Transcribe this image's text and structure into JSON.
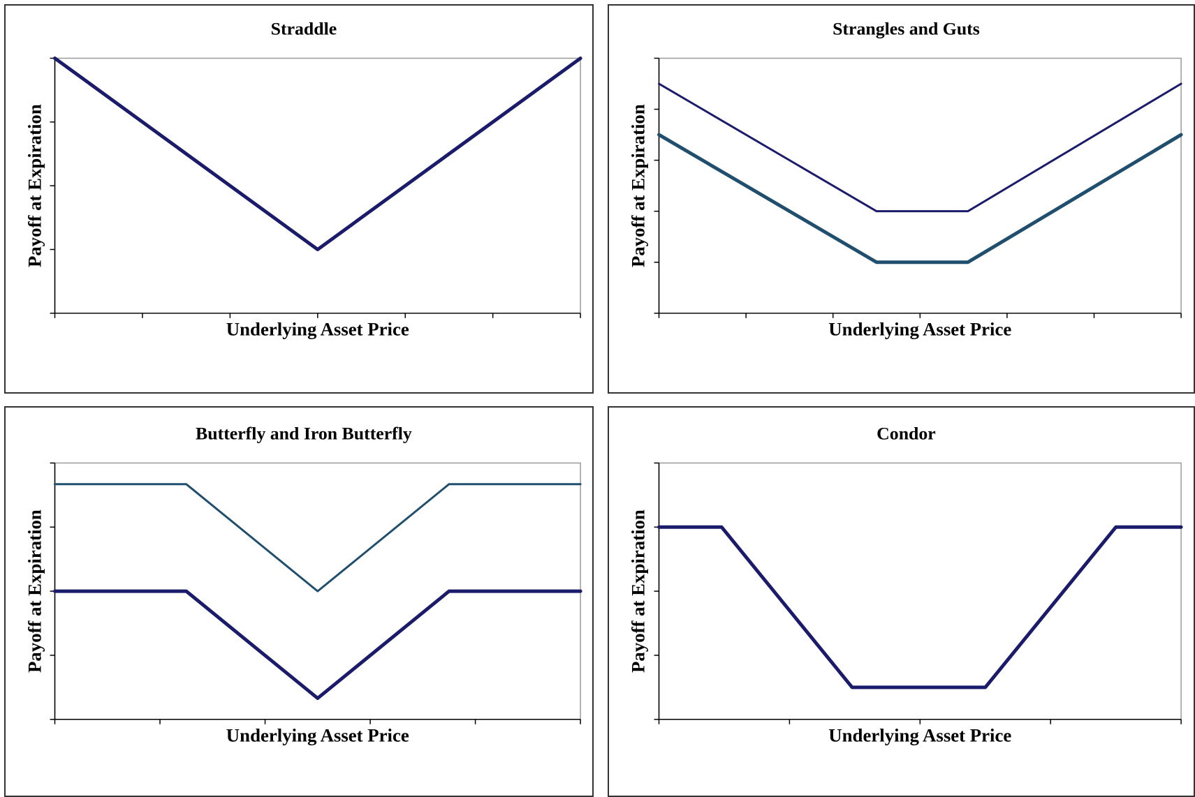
{
  "chart_data": [
    {
      "type": "line",
      "title": "Straddle",
      "xlabel": "Underlying Asset Price",
      "ylabel": "Payoff at Expiration",
      "xlim": [
        0,
        6
      ],
      "ylim": [
        0,
        4
      ],
      "xticks": 6,
      "yticks": 4,
      "grid": false,
      "series": [
        {
          "color": "#1b1b6b",
          "width": 5,
          "x": [
            0,
            3,
            6
          ],
          "y": [
            4,
            1,
            4
          ]
        }
      ]
    },
    {
      "type": "line",
      "title": "Strangles and Guts",
      "xlabel": "Underlying Asset Price",
      "ylabel": "Payoff at Expiration",
      "xlim": [
        0,
        6
      ],
      "ylim": [
        0,
        5
      ],
      "xticks": 6,
      "yticks": 5,
      "grid": false,
      "series": [
        {
          "color": "#1b1b6b",
          "width": 3,
          "x": [
            0,
            2.5,
            3.55,
            6
          ],
          "y": [
            4.5,
            2,
            2,
            4.5
          ]
        },
        {
          "color": "#1f4e6e",
          "width": 5,
          "x": [
            0,
            2.5,
            3.55,
            6
          ],
          "y": [
            3.5,
            1,
            1,
            3.5
          ]
        }
      ]
    },
    {
      "type": "line",
      "title": "Butterfly and Iron Butterfly",
      "xlabel": "Underlying Asset Price",
      "ylabel": "Payoff at Expiration",
      "xlim": [
        0,
        5
      ],
      "ylim": [
        0,
        4
      ],
      "xticks": 5,
      "yticks": 4,
      "grid": false,
      "series": [
        {
          "color": "#1f4e6e",
          "width": 3,
          "x": [
            0,
            1.25,
            2.5,
            3.75,
            5
          ],
          "y": [
            3.67,
            3.67,
            2.0,
            3.67,
            3.67
          ]
        },
        {
          "color": "#1b1b6b",
          "width": 5,
          "x": [
            0,
            1.25,
            2.5,
            3.75,
            5
          ],
          "y": [
            2,
            2,
            0.33,
            2,
            2
          ]
        }
      ]
    },
    {
      "type": "line",
      "title": "Condor",
      "xlabel": "Underlying Asset Price",
      "ylabel": "Payoff at Expiration",
      "xlim": [
        0,
        4
      ],
      "ylim": [
        0,
        4
      ],
      "xticks": 4,
      "yticks": 4,
      "grid": false,
      "series": [
        {
          "color": "#1b1b6b",
          "width": 5,
          "x": [
            0,
            0.48,
            1.48,
            2.5,
            3.5,
            4
          ],
          "y": [
            3,
            3,
            0.5,
            0.5,
            3,
            3
          ]
        }
      ]
    }
  ]
}
